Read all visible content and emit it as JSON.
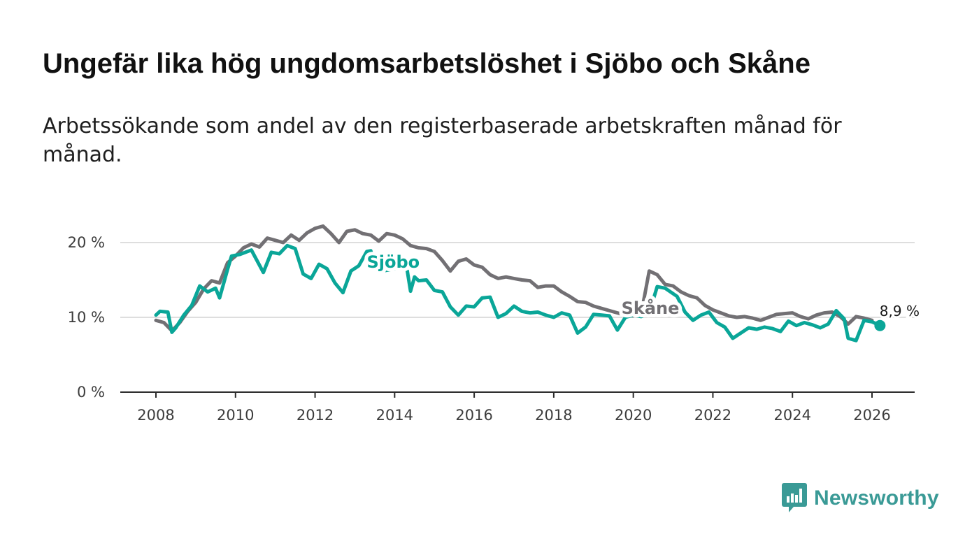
{
  "header": {
    "title": "Ungefär lika hög ungdomsarbetslöshet i Sjöbo och Skåne",
    "subtitle": "Arbetssökande som andel av den registerbaserade arbetskraften månad för månad."
  },
  "brand": {
    "name": "Newsworthy",
    "icon": "bar-chart-speech-bubble-icon",
    "color": "#3a9a96"
  },
  "chart_data": {
    "type": "line",
    "title": "Ungefär lika hög ungdomsarbetslöshet i Sjöbo och Skåne",
    "subtitle": "Arbetssökande som andel av den registerbaserade arbetskraften månad för månad.",
    "xlabel": "",
    "ylabel": "",
    "xlim": [
      2007.1,
      2027.1
    ],
    "ylim": [
      0,
      22
    ],
    "grid": true,
    "x_ticks": [
      {
        "value": 2008,
        "label": "2008"
      },
      {
        "value": 2010,
        "label": "2010"
      },
      {
        "value": 2012,
        "label": "2012"
      },
      {
        "value": 2014,
        "label": "2014"
      },
      {
        "value": 2016,
        "label": "2016"
      },
      {
        "value": 2018,
        "label": "2018"
      },
      {
        "value": 2020,
        "label": "2020"
      },
      {
        "value": 2022,
        "label": "2022"
      },
      {
        "value": 2024,
        "label": "2024"
      },
      {
        "value": 2026,
        "label": "2026"
      }
    ],
    "y_ticks": [
      {
        "value": 0,
        "label": "0 %"
      },
      {
        "value": 10,
        "label": "10 %"
      },
      {
        "value": 20,
        "label": "20 %"
      }
    ],
    "end_label": "8,9 %",
    "series": [
      {
        "name": "Skåne",
        "color": "#727074",
        "label_anchor": [
          2019.7,
          11.3
        ],
        "points": [
          [
            2008.0,
            9.6
          ],
          [
            2008.2,
            9.3
          ],
          [
            2008.4,
            8.2
          ],
          [
            2008.6,
            9.3
          ],
          [
            2008.8,
            10.8
          ],
          [
            2009.0,
            12.0
          ],
          [
            2009.2,
            13.8
          ],
          [
            2009.4,
            14.9
          ],
          [
            2009.6,
            14.6
          ],
          [
            2009.8,
            17.3
          ],
          [
            2010.0,
            18.2
          ],
          [
            2010.2,
            19.3
          ],
          [
            2010.4,
            19.8
          ],
          [
            2010.6,
            19.4
          ],
          [
            2010.8,
            20.6
          ],
          [
            2011.0,
            20.3
          ],
          [
            2011.2,
            20.0
          ],
          [
            2011.4,
            21.0
          ],
          [
            2011.6,
            20.3
          ],
          [
            2011.8,
            21.3
          ],
          [
            2012.0,
            21.9
          ],
          [
            2012.2,
            22.2
          ],
          [
            2012.4,
            21.2
          ],
          [
            2012.6,
            20.0
          ],
          [
            2012.8,
            21.5
          ],
          [
            2013.0,
            21.7
          ],
          [
            2013.2,
            21.2
          ],
          [
            2013.4,
            21.0
          ],
          [
            2013.6,
            20.2
          ],
          [
            2013.8,
            21.2
          ],
          [
            2014.0,
            21.0
          ],
          [
            2014.2,
            20.5
          ],
          [
            2014.4,
            19.6
          ],
          [
            2014.6,
            19.3
          ],
          [
            2014.8,
            19.2
          ],
          [
            2015.0,
            18.8
          ],
          [
            2015.2,
            17.6
          ],
          [
            2015.4,
            16.2
          ],
          [
            2015.6,
            17.5
          ],
          [
            2015.8,
            17.8
          ],
          [
            2016.0,
            17.0
          ],
          [
            2016.2,
            16.7
          ],
          [
            2016.4,
            15.7
          ],
          [
            2016.6,
            15.2
          ],
          [
            2016.8,
            15.4
          ],
          [
            2017.0,
            15.2
          ],
          [
            2017.2,
            15.0
          ],
          [
            2017.4,
            14.9
          ],
          [
            2017.6,
            14.0
          ],
          [
            2017.8,
            14.2
          ],
          [
            2018.0,
            14.2
          ],
          [
            2018.2,
            13.4
          ],
          [
            2018.4,
            12.8
          ],
          [
            2018.6,
            12.1
          ],
          [
            2018.8,
            12.0
          ],
          [
            2019.0,
            11.5
          ],
          [
            2019.2,
            11.2
          ],
          [
            2019.4,
            10.9
          ],
          [
            2019.6,
            10.6
          ],
          [
            2019.8,
            10.3
          ],
          [
            2020.0,
            10.2
          ],
          [
            2020.2,
            10.5
          ],
          [
            2020.4,
            16.2
          ],
          [
            2020.6,
            15.7
          ],
          [
            2020.8,
            14.4
          ],
          [
            2021.0,
            14.2
          ],
          [
            2021.2,
            13.4
          ],
          [
            2021.4,
            12.9
          ],
          [
            2021.6,
            12.6
          ],
          [
            2021.8,
            11.6
          ],
          [
            2022.0,
            11.0
          ],
          [
            2022.2,
            10.6
          ],
          [
            2022.4,
            10.2
          ],
          [
            2022.6,
            10.0
          ],
          [
            2022.8,
            10.1
          ],
          [
            2023.0,
            9.9
          ],
          [
            2023.2,
            9.6
          ],
          [
            2023.4,
            10.0
          ],
          [
            2023.6,
            10.4
          ],
          [
            2023.8,
            10.5
          ],
          [
            2024.0,
            10.6
          ],
          [
            2024.2,
            10.1
          ],
          [
            2024.4,
            9.8
          ],
          [
            2024.6,
            10.3
          ],
          [
            2024.8,
            10.6
          ],
          [
            2025.0,
            10.7
          ],
          [
            2025.2,
            10.1
          ],
          [
            2025.4,
            9.1
          ],
          [
            2025.6,
            10.1
          ],
          [
            2025.8,
            9.9
          ],
          [
            2026.0,
            9.6
          ]
        ]
      },
      {
        "name": "Sjöbo",
        "color": "#0aa698",
        "label_anchor": [
          2013.3,
          17.5
        ],
        "points": [
          [
            2008.0,
            10.3
          ],
          [
            2008.1,
            10.8
          ],
          [
            2008.3,
            10.7
          ],
          [
            2008.4,
            8.0
          ],
          [
            2008.5,
            8.6
          ],
          [
            2008.7,
            10.3
          ],
          [
            2008.9,
            11.6
          ],
          [
            2009.1,
            14.2
          ],
          [
            2009.3,
            13.4
          ],
          [
            2009.5,
            13.9
          ],
          [
            2009.6,
            12.6
          ],
          [
            2009.8,
            16.4
          ],
          [
            2009.9,
            18.2
          ],
          [
            2010.1,
            18.4
          ],
          [
            2010.2,
            18.6
          ],
          [
            2010.4,
            19.0
          ],
          [
            2010.5,
            18.0
          ],
          [
            2010.7,
            16.0
          ],
          [
            2010.9,
            18.7
          ],
          [
            2011.1,
            18.5
          ],
          [
            2011.3,
            19.6
          ],
          [
            2011.5,
            19.2
          ],
          [
            2011.7,
            15.8
          ],
          [
            2011.9,
            15.2
          ],
          [
            2012.1,
            17.1
          ],
          [
            2012.3,
            16.5
          ],
          [
            2012.5,
            14.6
          ],
          [
            2012.7,
            13.3
          ],
          [
            2012.9,
            16.2
          ],
          [
            2013.1,
            16.9
          ],
          [
            2013.3,
            18.8
          ],
          [
            2013.4,
            18.9
          ],
          [
            2013.5,
            17.2
          ],
          [
            2013.7,
            16.2
          ],
          [
            2014.3,
            16.8
          ],
          [
            2014.4,
            13.5
          ],
          [
            2014.5,
            15.4
          ],
          [
            2014.6,
            14.9
          ],
          [
            2014.8,
            15.0
          ],
          [
            2015.0,
            13.6
          ],
          [
            2015.2,
            13.4
          ],
          [
            2015.4,
            11.4
          ],
          [
            2015.6,
            10.3
          ],
          [
            2015.8,
            11.5
          ],
          [
            2016.0,
            11.4
          ],
          [
            2016.2,
            12.6
          ],
          [
            2016.4,
            12.7
          ],
          [
            2016.6,
            10.0
          ],
          [
            2016.8,
            10.5
          ],
          [
            2017.0,
            11.5
          ],
          [
            2017.2,
            10.8
          ],
          [
            2017.4,
            10.6
          ],
          [
            2017.6,
            10.7
          ],
          [
            2017.8,
            10.3
          ],
          [
            2018.0,
            10.0
          ],
          [
            2018.2,
            10.6
          ],
          [
            2018.4,
            10.3
          ],
          [
            2018.6,
            7.9
          ],
          [
            2018.8,
            8.7
          ],
          [
            2019.0,
            10.4
          ],
          [
            2019.2,
            10.3
          ],
          [
            2019.4,
            10.2
          ],
          [
            2019.6,
            8.3
          ],
          [
            2019.8,
            10.0
          ],
          [
            2020.0,
            10.3
          ],
          [
            2020.2,
            10.1
          ],
          [
            2020.4,
            10.6
          ],
          [
            2020.6,
            14.1
          ],
          [
            2020.8,
            13.9
          ],
          [
            2021.1,
            12.8
          ],
          [
            2021.3,
            10.7
          ],
          [
            2021.5,
            9.6
          ],
          [
            2021.7,
            10.3
          ],
          [
            2021.9,
            10.7
          ],
          [
            2022.1,
            9.3
          ],
          [
            2022.3,
            8.7
          ],
          [
            2022.5,
            7.2
          ],
          [
            2022.7,
            7.9
          ],
          [
            2022.9,
            8.6
          ],
          [
            2023.1,
            8.4
          ],
          [
            2023.3,
            8.7
          ],
          [
            2023.5,
            8.5
          ],
          [
            2023.7,
            8.1
          ],
          [
            2023.9,
            9.5
          ],
          [
            2024.1,
            8.9
          ],
          [
            2024.3,
            9.3
          ],
          [
            2024.5,
            9.0
          ],
          [
            2024.7,
            8.6
          ],
          [
            2024.9,
            9.1
          ],
          [
            2025.1,
            10.9
          ],
          [
            2025.3,
            9.8
          ],
          [
            2025.4,
            7.2
          ],
          [
            2025.6,
            6.9
          ],
          [
            2025.8,
            9.6
          ],
          [
            2026.0,
            9.4
          ],
          [
            2026.2,
            8.9
          ]
        ]
      }
    ]
  }
}
